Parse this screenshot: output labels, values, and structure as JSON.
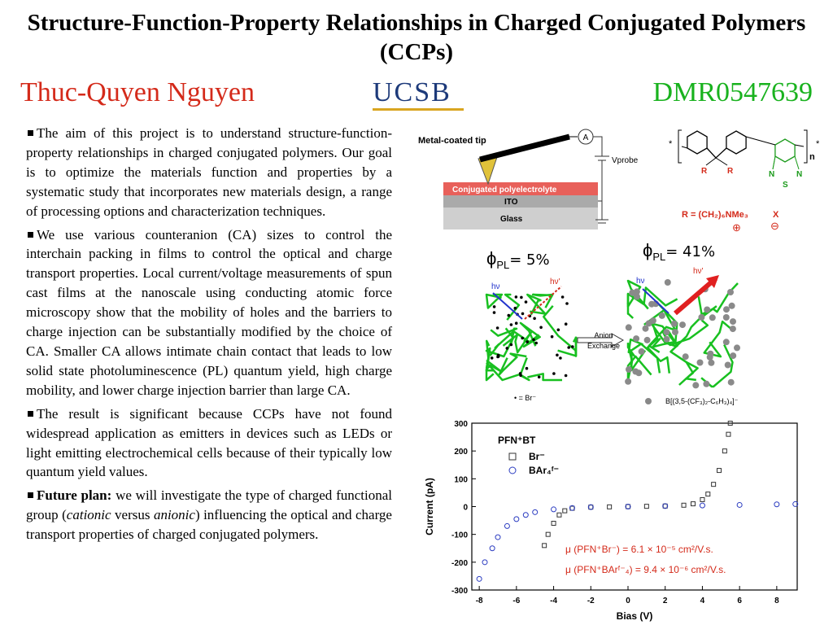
{
  "header": {
    "title": "Structure-Function-Property Relationships in Charged Conjugated Polymers (CCPs)",
    "author": "Thuc-Quyen Nguyen",
    "logo": "UCSB",
    "grant": "DMR0547639"
  },
  "body": [
    [
      "The aim of this project is to understand structure-function-property relationships in charged conjugated polymers. Our goal is to optimize the materials function and properties by a systematic study that incorporates new materials design, a range of processing options and characterization techniques."
    ],
    [
      "We use various counteranion (CA) sizes to control the interchain packing in films to control the optical and charge transport properties. Local current/voltage measurements of spun cast films at the nanoscale using conducting atomic force microscopy show that the mobility of holes and the barriers to charge injection can be substantially modified by the choice of CA. Smaller CA allows intimate chain contact that leads to low solid state photoluminescence (PL) quantum yield, high charge mobility, and lower charge injection barrier than large CA."
    ],
    [
      "The result is significant because CCPs have not found widespread application as emitters in devices such as LEDs or light emitting electrochemical cells because of their typically low quantum yield values."
    ],
    [
      "Future plan:",
      " we will investigate the type of charged functional group (",
      "cationic",
      " versus ",
      "anionic",
      ") influencing the optical and charge transport properties of charged conjugated polymers."
    ]
  ],
  "figures": {
    "afm": {
      "tip": "Metal-coated tip",
      "meter": "A",
      "probe": "Vprobe",
      "layers": [
        "Conjugated polyelectrolyte",
        "ITO",
        "Glass"
      ]
    },
    "structure": {
      "end": "*",
      "repeat": "n",
      "substituent": "R",
      "ring_atoms": [
        "N",
        "S",
        "N"
      ],
      "r_group": "R = (CH₂)₆NMe₃",
      "counterion": "X",
      "plus": "⊕",
      "minus": "⊖"
    },
    "exchange": {
      "before": {
        "symbol": "ϕ",
        "sub": "PL",
        "text": "= 5%"
      },
      "after": {
        "symbol": "ϕ",
        "sub": "PL",
        "text": "= 41%"
      },
      "hv": "hν",
      "hv_out": "hν'",
      "arrow": [
        "Anion",
        "Exchange"
      ],
      "legend_before": "• = Br⁻",
      "legend_after": "B[(3,5-(CF₃)₂-C₆H₃)₄]⁻"
    }
  },
  "chart_data": {
    "type": "scatter",
    "xlabel": "Bias (V)",
    "ylabel": "Current (pA)",
    "xlim": [
      -8.4,
      9.1
    ],
    "ylim": [
      -300,
      300
    ],
    "xticks": [
      -8,
      -6,
      -4,
      -2,
      0,
      2,
      4,
      6,
      8
    ],
    "yticks": [
      -300,
      -200,
      -100,
      0,
      100,
      200,
      300
    ],
    "legend_title": "PFN⁺BT",
    "legend": "upper left",
    "series": [
      {
        "name": "Br⁻",
        "marker": "square",
        "color": "#333333",
        "x": [
          -4.5,
          -4.3,
          -4.0,
          -3.7,
          -3.4,
          -3.0,
          -2.0,
          -1.0,
          0,
          1.0,
          2.0,
          3.0,
          3.5,
          4.0,
          4.3,
          4.6,
          4.9,
          5.2,
          5.4,
          5.5
        ],
        "values": [
          -140,
          -100,
          -60,
          -30,
          -15,
          -6,
          -2,
          -1,
          0,
          1,
          2,
          5,
          10,
          25,
          45,
          80,
          130,
          200,
          260,
          300
        ]
      },
      {
        "name": "BAr₄ᶠ⁻",
        "marker": "circle",
        "color": "#2a3bc0",
        "x": [
          -8.0,
          -7.7,
          -7.3,
          -7.0,
          -6.5,
          -6.0,
          -5.5,
          -5.0,
          -4.0,
          -3.0,
          -2.0,
          0,
          2.0,
          4.0,
          6.0,
          8.0,
          9.0
        ],
        "values": [
          -260,
          -200,
          -150,
          -110,
          -70,
          -45,
          -30,
          -20,
          -10,
          -5,
          -2,
          0,
          2,
          4,
          6,
          8,
          9
        ]
      }
    ],
    "annotations": [
      "μ (PFN⁺Br⁻) = 6.1 × 10⁻⁵ cm²/V.s.",
      "μ (PFN⁺BArᶠ⁻₄) = 9.4 × 10⁻⁶ cm²/V.s."
    ]
  }
}
